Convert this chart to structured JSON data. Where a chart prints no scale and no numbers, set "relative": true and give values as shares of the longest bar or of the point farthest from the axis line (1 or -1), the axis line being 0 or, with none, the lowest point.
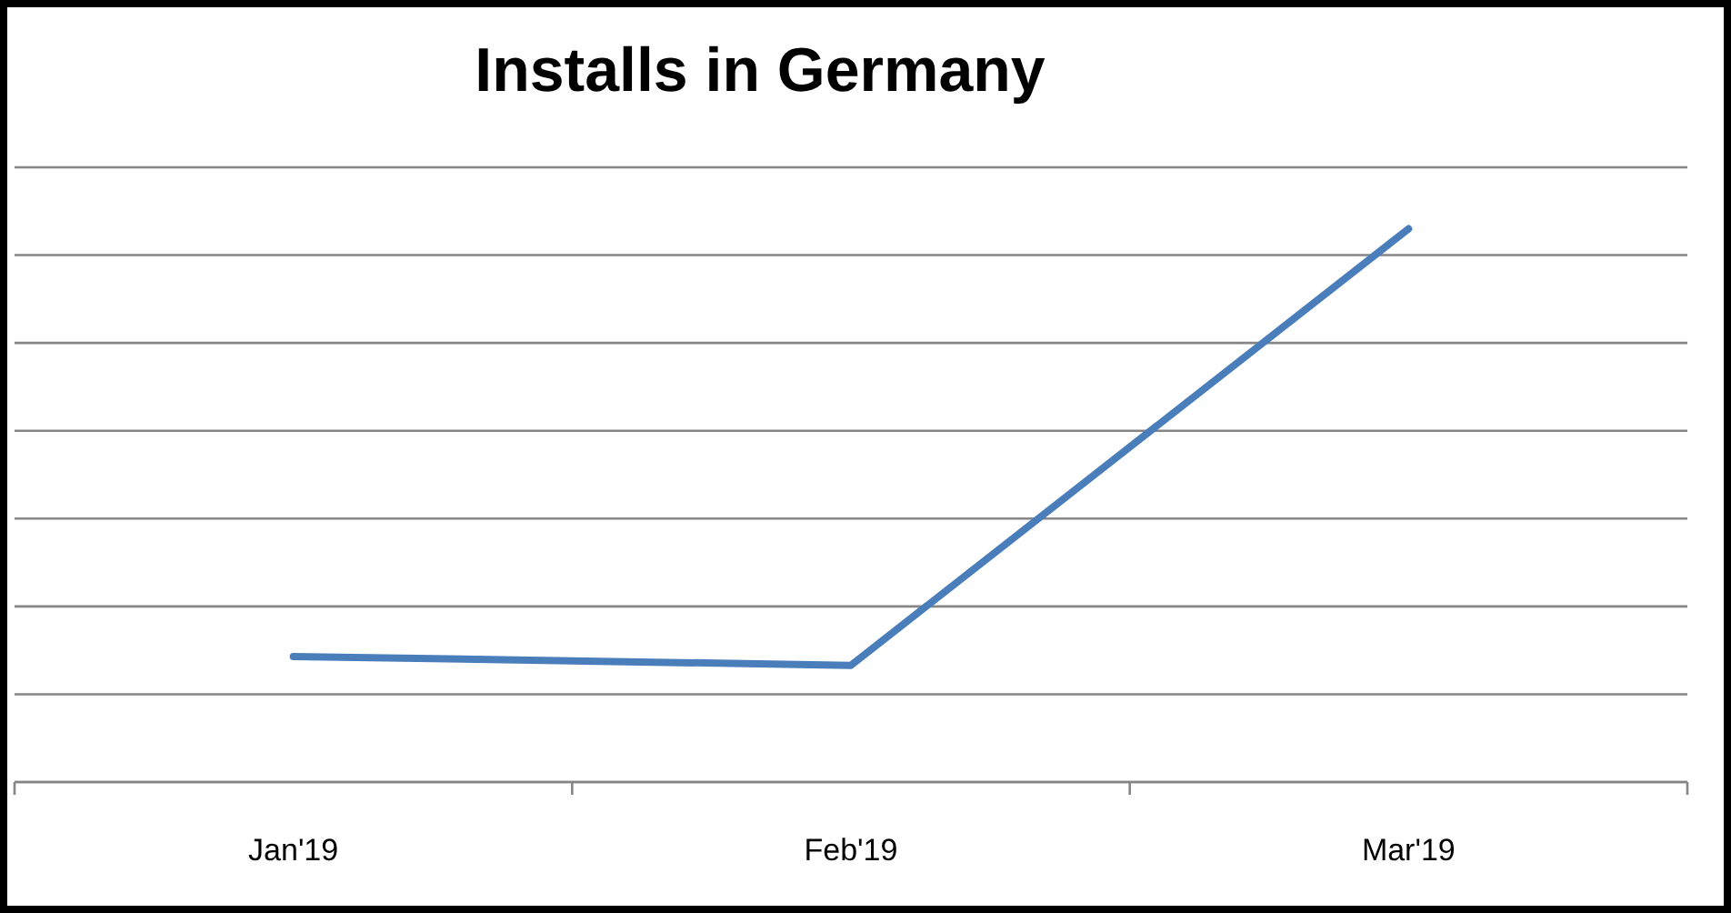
{
  "chart_data": {
    "type": "line",
    "title": "Installs in Germany",
    "categories": [
      "Jan'19",
      "Feb'19",
      "Mar'19"
    ],
    "series": [
      {
        "color": "#4a7ebb",
        "values": [
          0.227,
          0.211,
          1
        ]
      }
    ],
    "relative": true,
    "grid": "y",
    "marker": "none",
    "line_style": "solid"
  }
}
